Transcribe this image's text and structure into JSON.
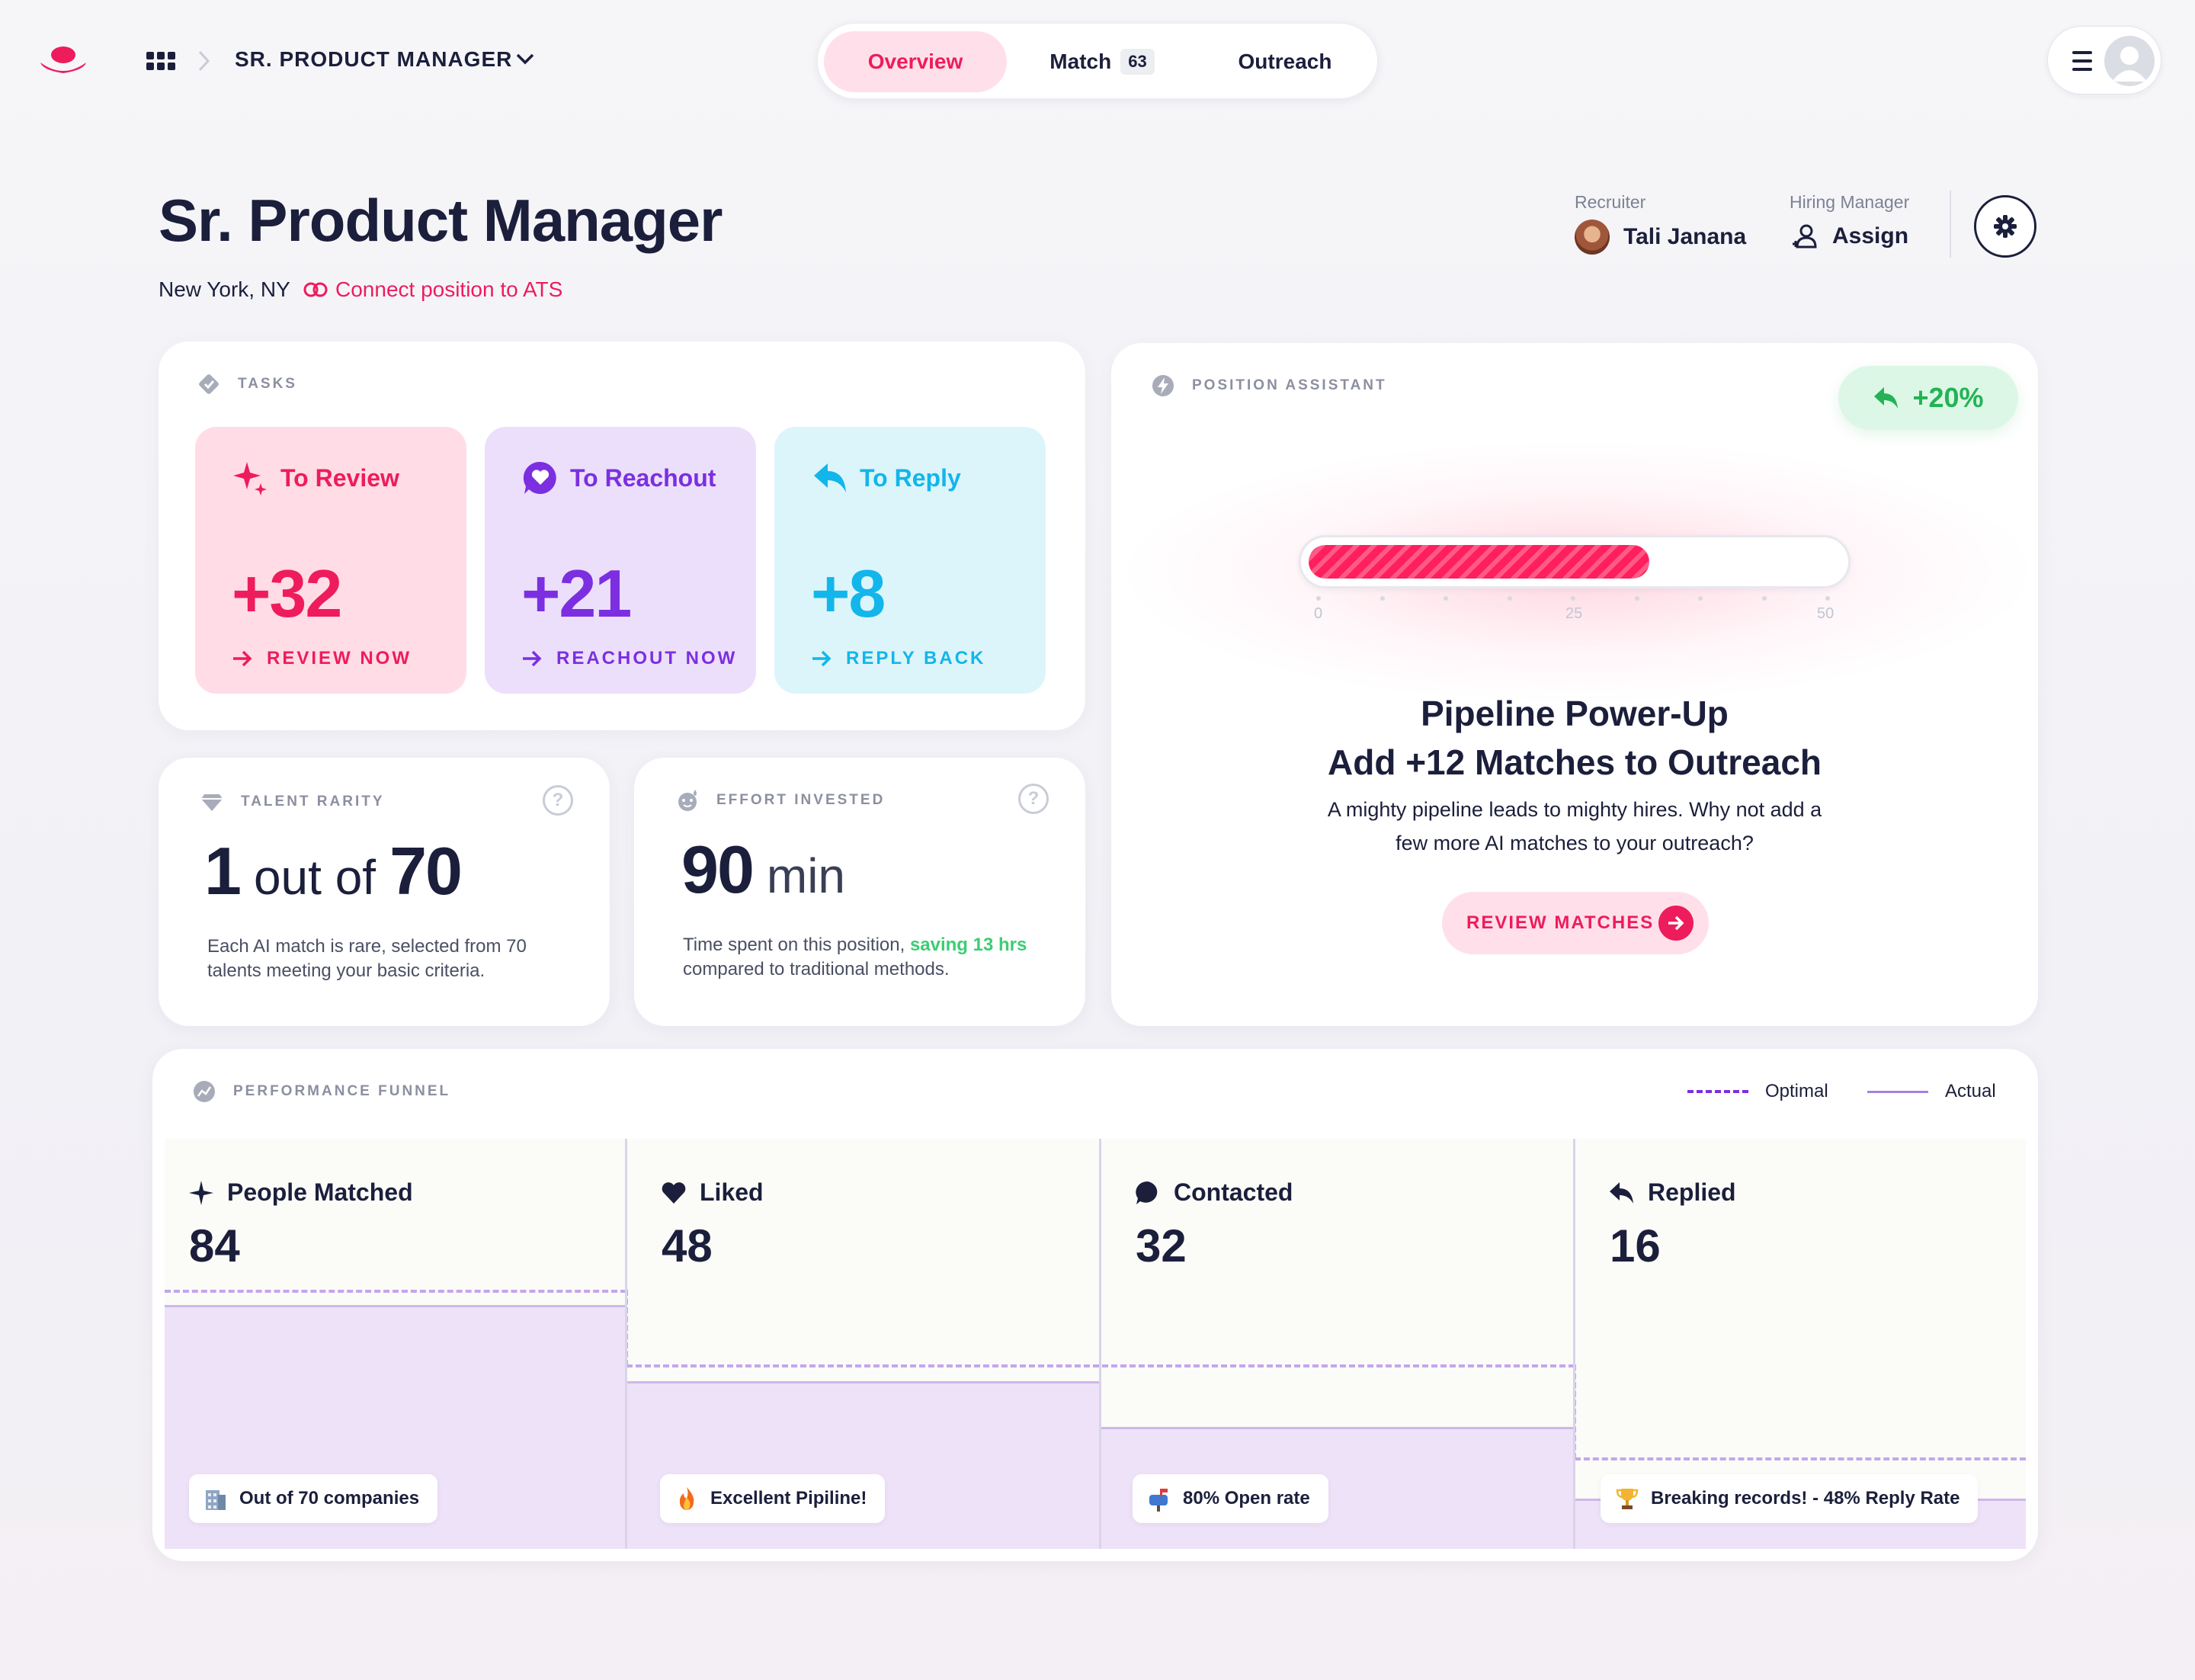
{
  "nav": {
    "breadcrumb_title": "SR. PRODUCT MANAGER",
    "tabs": [
      {
        "label": "Overview",
        "active": true
      },
      {
        "label": "Match",
        "badge": "63",
        "active": false
      },
      {
        "label": "Outreach",
        "active": false
      }
    ]
  },
  "header": {
    "title": "Sr. Product Manager",
    "location": "New York, NY",
    "ats_link": "Connect position to ATS",
    "recruiter_label": "Recruiter",
    "recruiter_name": "Tali Janana",
    "hiring_manager_label": "Hiring Manager",
    "hiring_manager_action": "Assign"
  },
  "tasks": {
    "label": "TASKS",
    "items": [
      {
        "title": "To Review",
        "count": "+32",
        "cta": "REVIEW NOW",
        "color": "#ee1c5c",
        "bg": "#ffdce6",
        "icon": "sparkle-icon"
      },
      {
        "title": "To Reachout",
        "count": "+21",
        "cta": "REACHOUT NOW",
        "color": "#7b2fe0",
        "bg": "#ecdffb",
        "icon": "heart-chat-icon"
      },
      {
        "title": "To Reply",
        "count": "+8",
        "cta": "REPLY BACK",
        "color": "#12b6ea",
        "bg": "#dcf5fb",
        "icon": "reply-icon"
      }
    ]
  },
  "talent_rarity": {
    "label": "TALENT RARITY",
    "value": "1",
    "of_word": "out of",
    "total": "70",
    "desc_line1": "Each AI match is rare, selected from 70",
    "desc_line2": "talents meeting your basic criteria."
  },
  "effort": {
    "label": "EFFORT INVESTED",
    "value": "90",
    "unit": "min",
    "desc_pre": "Time spent on this position,",
    "desc_highlight": "saving 13 hrs",
    "desc_line2": "compared to traditional methods."
  },
  "assistant": {
    "label": "POSITION ASSISTANT",
    "boost": "+20%",
    "progress_value": 32,
    "progress_max": 50,
    "scale_labels": [
      "0",
      "25",
      "50"
    ],
    "title_line1": "Pipeline Power-Up",
    "title_line2": "Add +12 Matches to Outreach",
    "desc_line1": "A mighty pipeline leads to mighty hires. Why not add a",
    "desc_line2": "few more AI matches to your outreach?",
    "cta": "REVIEW MATCHES"
  },
  "funnel": {
    "label": "PERFORMANCE FUNNEL",
    "legend_optimal": "Optimal",
    "legend_actual": "Actual",
    "stages": [
      {
        "name": "People Matched",
        "value": "84",
        "chip": "Out of 70 companies",
        "icon": "sparkle-icon",
        "chip_icon": "building-icon"
      },
      {
        "name": "Liked",
        "value": "48",
        "chip": "Excellent Pipiline!",
        "icon": "heart-icon",
        "chip_icon": "fire-icon"
      },
      {
        "name": "Contacted",
        "value": "32",
        "chip": "80% Open rate",
        "icon": "chat-icon",
        "chip_icon": "mailbox-icon"
      },
      {
        "name": "Replied",
        "value": "16",
        "chip": "Breaking records! - 48% Reply Rate",
        "icon": "reply-icon",
        "chip_icon": "trophy-icon"
      }
    ]
  },
  "colors": {
    "brand_pink": "#ee1c5c",
    "purple": "#7b2fe0",
    "cyan": "#12b6ea",
    "green": "#23b356",
    "ink": "#1b1f3b"
  }
}
